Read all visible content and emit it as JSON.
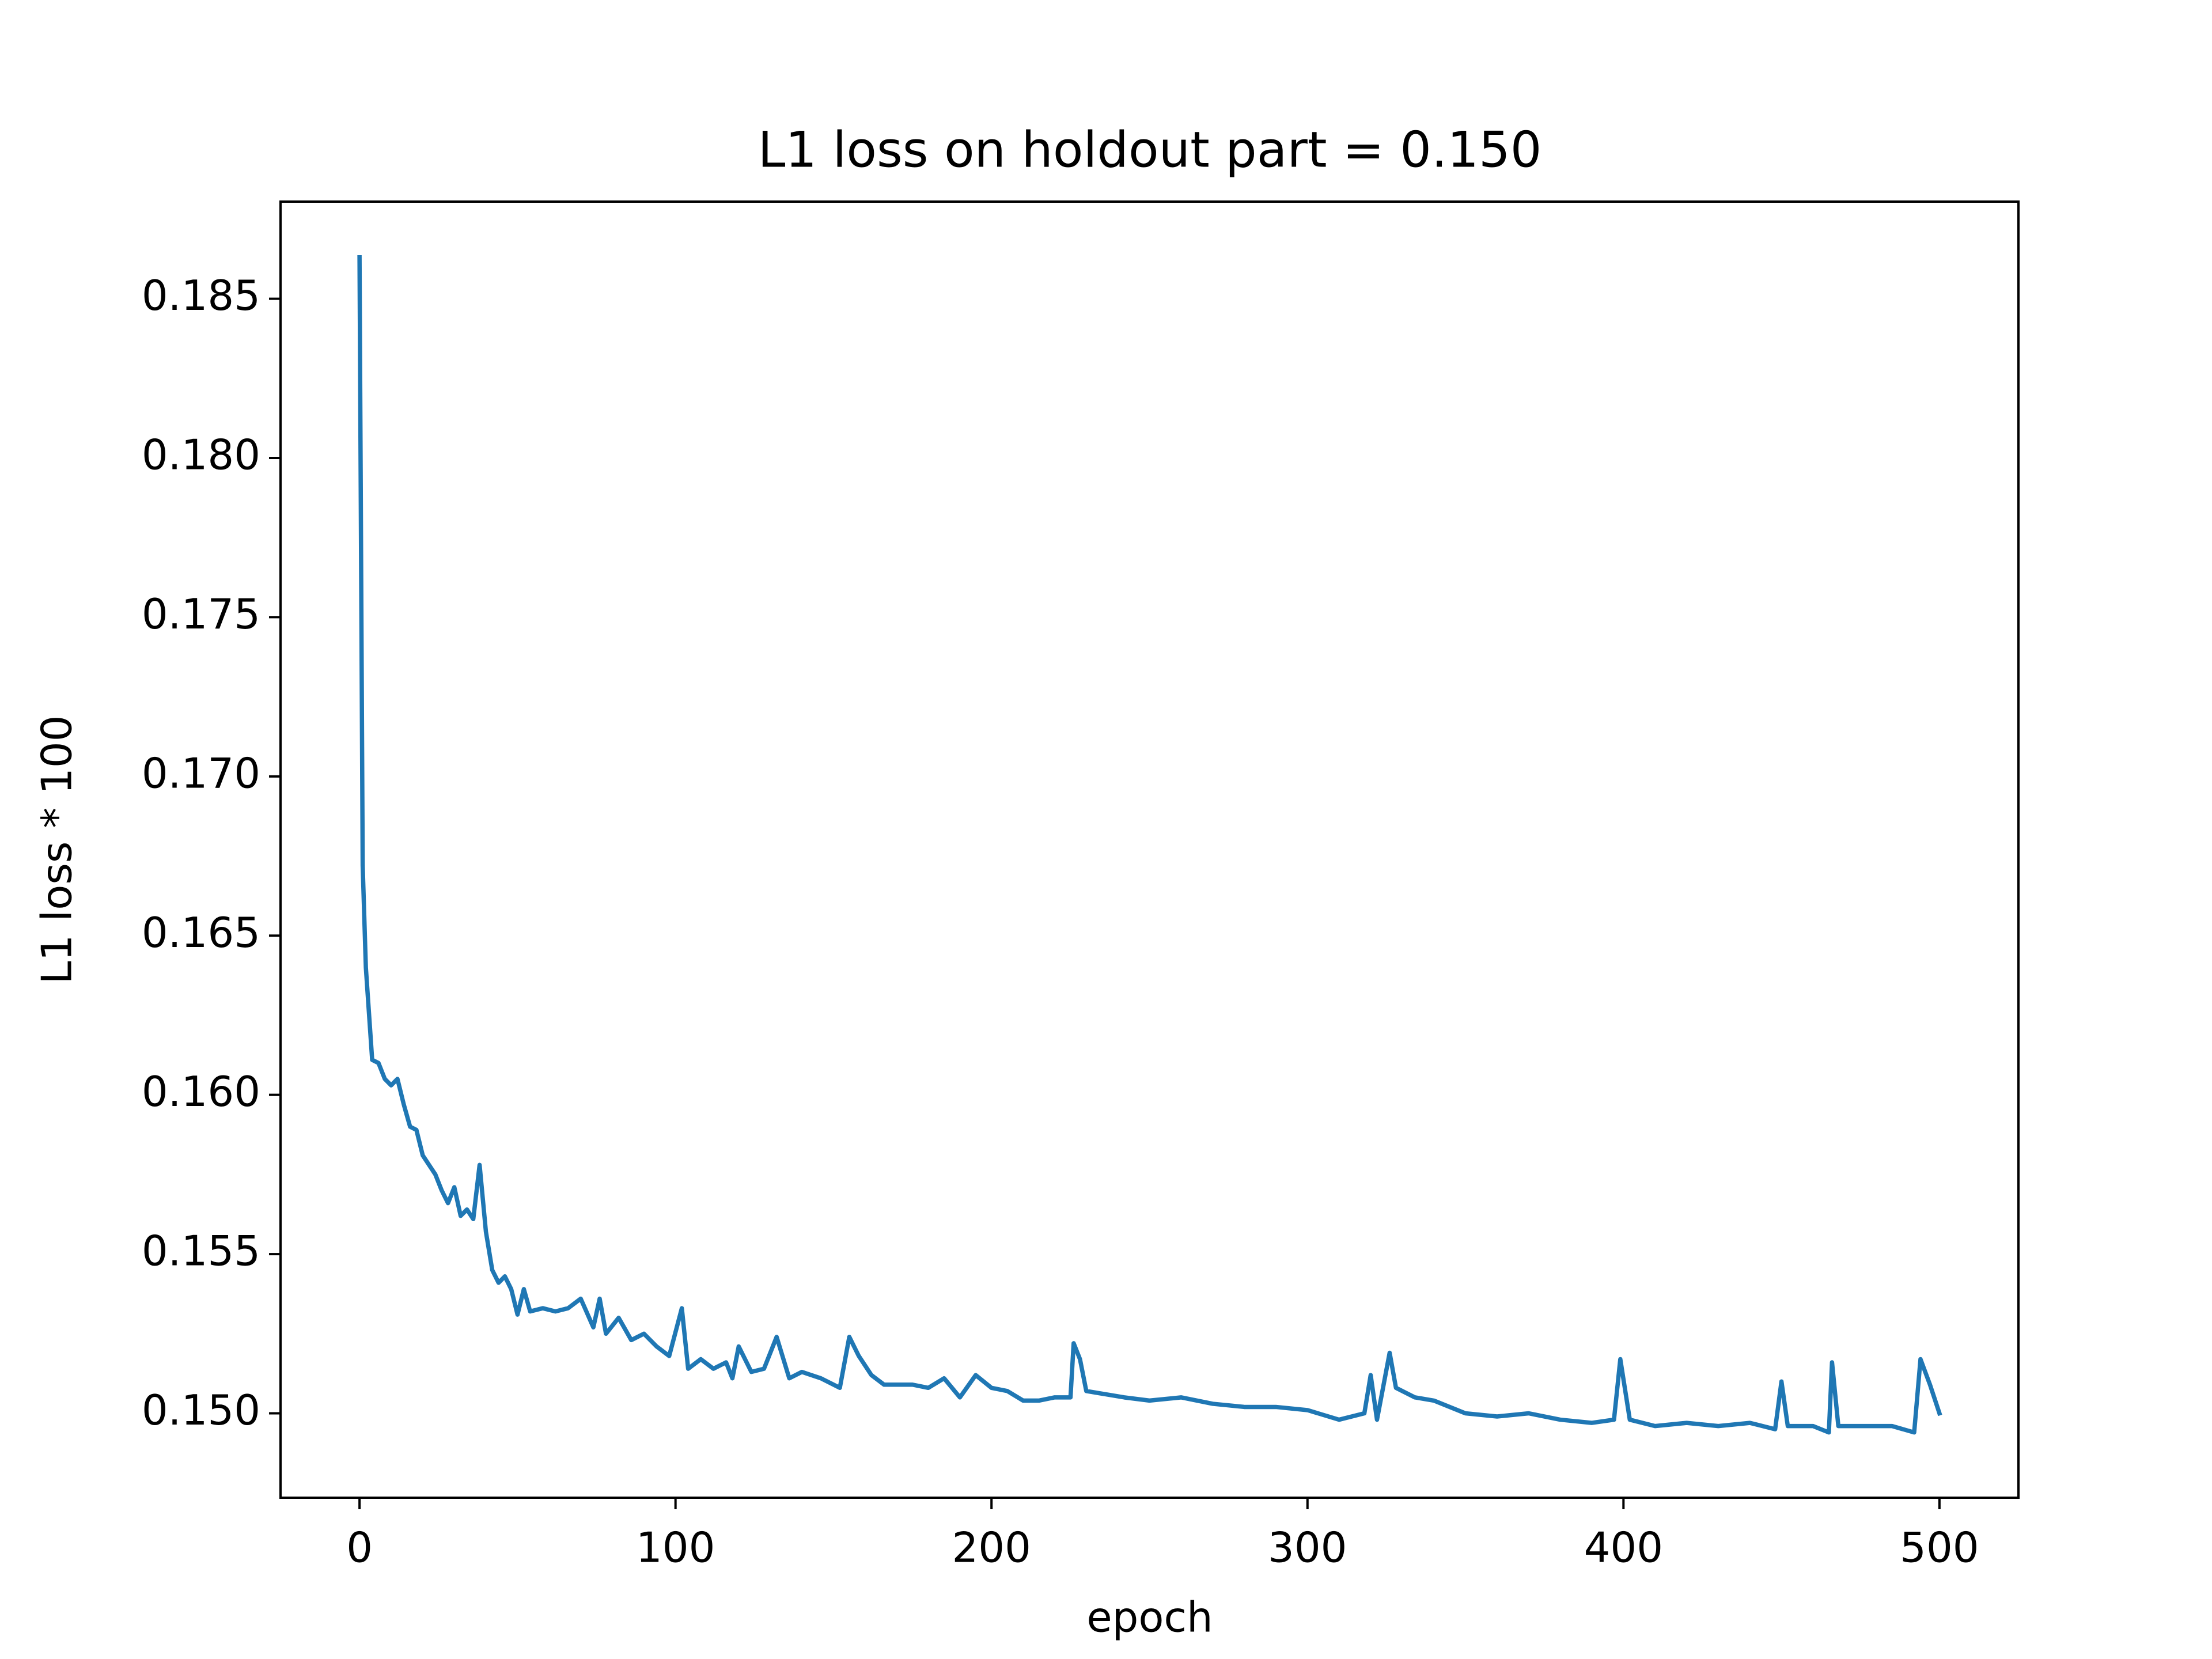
{
  "chart_data": {
    "type": "line",
    "title": "L1 loss on holdout part = 0.150",
    "x_label": "epoch",
    "y_label": "L1 loss * 100",
    "xlim": [
      -25,
      525
    ],
    "ylim": [
      0.14735,
      0.18805
    ],
    "xticks": [
      0,
      100,
      200,
      300,
      400,
      500
    ],
    "yticks": [
      {
        "value": 0.15,
        "label": "0.150"
      },
      0.155,
      {
        "value": 0.16,
        "label": "0.160"
      },
      0.165,
      {
        "value": 0.17,
        "label": "0.170"
      },
      0.175,
      {
        "value": 0.18,
        "label": "0.180"
      },
      0.185
    ],
    "grid": false,
    "x": [
      0,
      1,
      2,
      4,
      6,
      8,
      10,
      12,
      14,
      16,
      18,
      20,
      22,
      24,
      26,
      28,
      30,
      32,
      34,
      36,
      38,
      40,
      42,
      44,
      46,
      48,
      50,
      52,
      54,
      58,
      62,
      66,
      70,
      74,
      76,
      78,
      82,
      86,
      90,
      94,
      98,
      102,
      104,
      108,
      112,
      116,
      118,
      120,
      124,
      128,
      132,
      136,
      140,
      146,
      152,
      155,
      158,
      162,
      166,
      170,
      175,
      180,
      185,
      190,
      195,
      200,
      205,
      210,
      215,
      220,
      225,
      226,
      228,
      230,
      236,
      242,
      250,
      260,
      270,
      280,
      290,
      300,
      310,
      318,
      320,
      322,
      326,
      328,
      334,
      340,
      350,
      360,
      370,
      380,
      390,
      397,
      399,
      402,
      410,
      420,
      430,
      440,
      448,
      450,
      452,
      460,
      465,
      466,
      468,
      475,
      485,
      492,
      494,
      497,
      500
    ],
    "series": [
      {
        "color": "#1f77b4",
        "values": [
          0.1863,
          0.1672,
          0.164,
          0.1611,
          0.161,
          0.1605,
          0.1603,
          0.1605,
          0.1597,
          0.159,
          0.1589,
          0.1581,
          0.1578,
          0.1575,
          0.157,
          0.1566,
          0.1571,
          0.1562,
          0.1564,
          0.1561,
          0.1578,
          0.1557,
          0.1545,
          0.1541,
          0.1543,
          0.1539,
          0.1531,
          0.1539,
          0.1532,
          0.1533,
          0.1532,
          0.1533,
          0.1536,
          0.1527,
          0.1536,
          0.1525,
          0.153,
          0.1523,
          0.1525,
          0.1521,
          0.1518,
          0.1533,
          0.1514,
          0.1517,
          0.1514,
          0.1516,
          0.1511,
          0.1521,
          0.1513,
          0.1514,
          0.1524,
          0.1511,
          0.1513,
          0.1511,
          0.1508,
          0.1524,
          0.1518,
          0.1512,
          0.1509,
          0.1509,
          0.1509,
          0.1508,
          0.1511,
          0.1505,
          0.1512,
          0.1508,
          0.1507,
          0.1504,
          0.1504,
          0.1505,
          0.1505,
          0.1522,
          0.1517,
          0.1507,
          0.1506,
          0.1505,
          0.1504,
          0.1505,
          0.1503,
          0.1502,
          0.1502,
          0.1501,
          0.1498,
          0.15,
          0.1512,
          0.1498,
          0.1519,
          0.1508,
          0.1505,
          0.1504,
          0.15,
          0.1499,
          0.15,
          0.1498,
          0.1497,
          0.1498,
          0.1517,
          0.1498,
          0.1496,
          0.1497,
          0.1496,
          0.1497,
          0.1495,
          0.151,
          0.1496,
          0.1496,
          0.1494,
          0.1516,
          0.1496,
          0.1496,
          0.1496,
          0.1494,
          0.1517,
          0.1509,
          0.15
        ]
      }
    ]
  }
}
